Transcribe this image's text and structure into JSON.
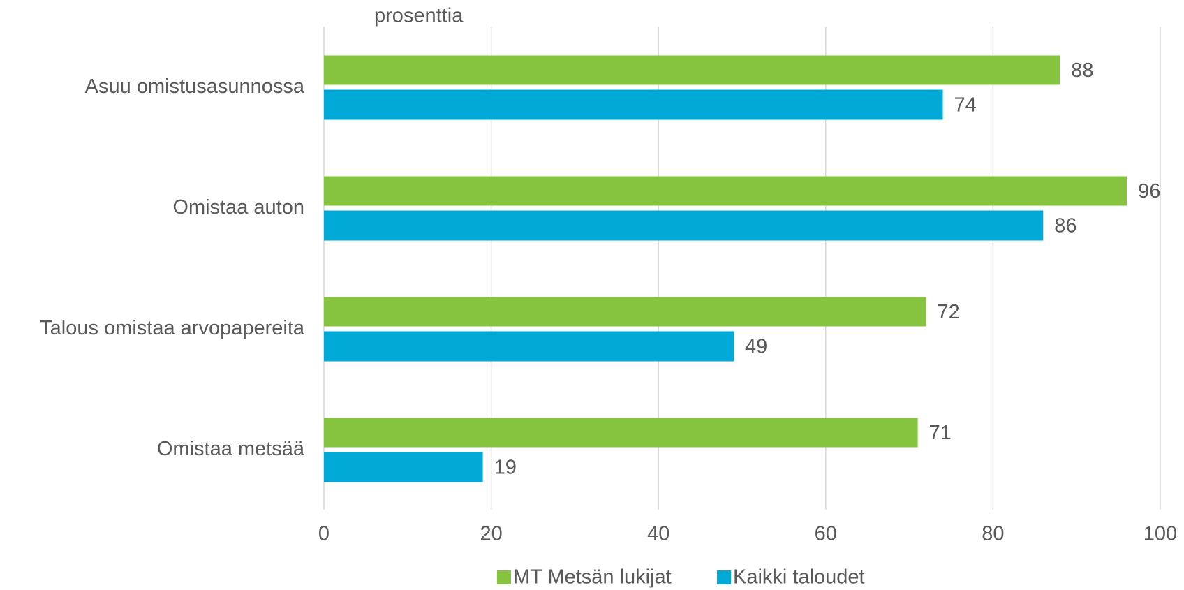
{
  "chart_data": {
    "type": "bar",
    "orientation": "horizontal",
    "xlabel": "prosenttia",
    "categories": [
      "Asuu omistusasunnossa",
      "Omistaa auton",
      "Talous omistaa arvopapereita",
      "Omistaa metsää"
    ],
    "series": [
      {
        "name": "MT Metsän lukijat",
        "color": "#86c440",
        "values": [
          88,
          96,
          72,
          71
        ]
      },
      {
        "name": "Kaikki taloudet",
        "color": "#00a9d6",
        "values": [
          74,
          86,
          49,
          19
        ]
      }
    ],
    "xlim": [
      0,
      100
    ],
    "xticks": [
      0,
      20,
      40,
      60,
      80,
      100
    ],
    "grid": true,
    "legend": "bottom"
  }
}
